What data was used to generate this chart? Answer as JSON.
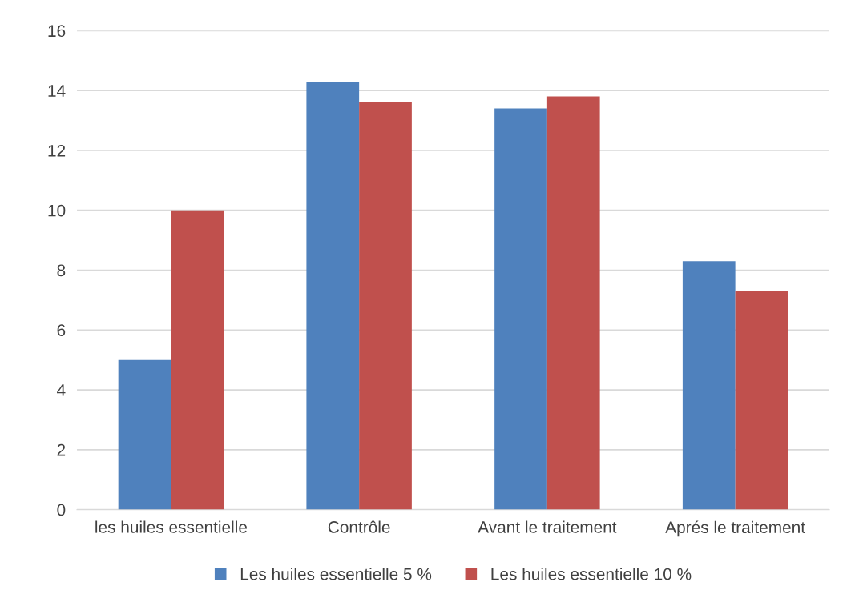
{
  "chart_data": {
    "type": "bar",
    "categories": [
      "les huiles essentielle",
      "Contrôle",
      "Avant le traitement",
      "Aprés le traitement"
    ],
    "series": [
      {
        "name": "Les huiles essentielle 5 %",
        "color": "#4f81bd",
        "values": [
          5,
          14.3,
          13.4,
          8.3
        ]
      },
      {
        "name": "Les huiles essentielle 10 %",
        "color": "#c0504d",
        "values": [
          10,
          13.6,
          13.8,
          7.3
        ]
      }
    ],
    "ylim": [
      0,
      16
    ],
    "yticks": [
      0,
      2,
      4,
      6,
      8,
      10,
      12,
      14,
      16
    ],
    "grid": "y",
    "legend": "bottom"
  }
}
